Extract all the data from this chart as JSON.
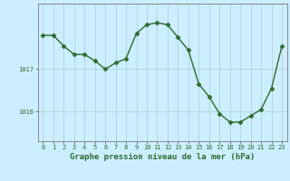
{
  "x": [
    0,
    1,
    2,
    3,
    4,
    5,
    6,
    7,
    8,
    9,
    10,
    11,
    12,
    13,
    14,
    15,
    16,
    17,
    18,
    19,
    20,
    21,
    22,
    23
  ],
  "y": [
    1017.8,
    1017.8,
    1017.55,
    1017.35,
    1017.35,
    1017.2,
    1017.0,
    1017.15,
    1017.25,
    1017.85,
    1018.05,
    1018.1,
    1018.05,
    1017.75,
    1017.45,
    1016.65,
    1016.35,
    1015.95,
    1015.75,
    1015.75,
    1015.9,
    1016.05,
    1016.55,
    1017.55
  ],
  "line_color": "#2d6a2d",
  "marker": "D",
  "markersize": 2.5,
  "linewidth": 1.0,
  "bg_color": "#cceeff",
  "grid_color": "#aacccc",
  "axis_color": "#666666",
  "xlabel": "Graphe pression niveau de la mer (hPa)",
  "xlabel_fontsize": 6.5,
  "xlabel_color": "#2d6a2d",
  "xlabel_bold": true,
  "yticks": [
    1016.0,
    1017.0
  ],
  "ylim": [
    1015.3,
    1018.55
  ],
  "xlim": [
    -0.5,
    23.5
  ],
  "xticks": [
    0,
    1,
    2,
    3,
    4,
    5,
    6,
    7,
    8,
    9,
    10,
    11,
    12,
    13,
    14,
    15,
    16,
    17,
    18,
    19,
    20,
    21,
    22,
    23
  ],
  "tick_fontsize": 5.0,
  "tick_color": "#2d6a2d"
}
